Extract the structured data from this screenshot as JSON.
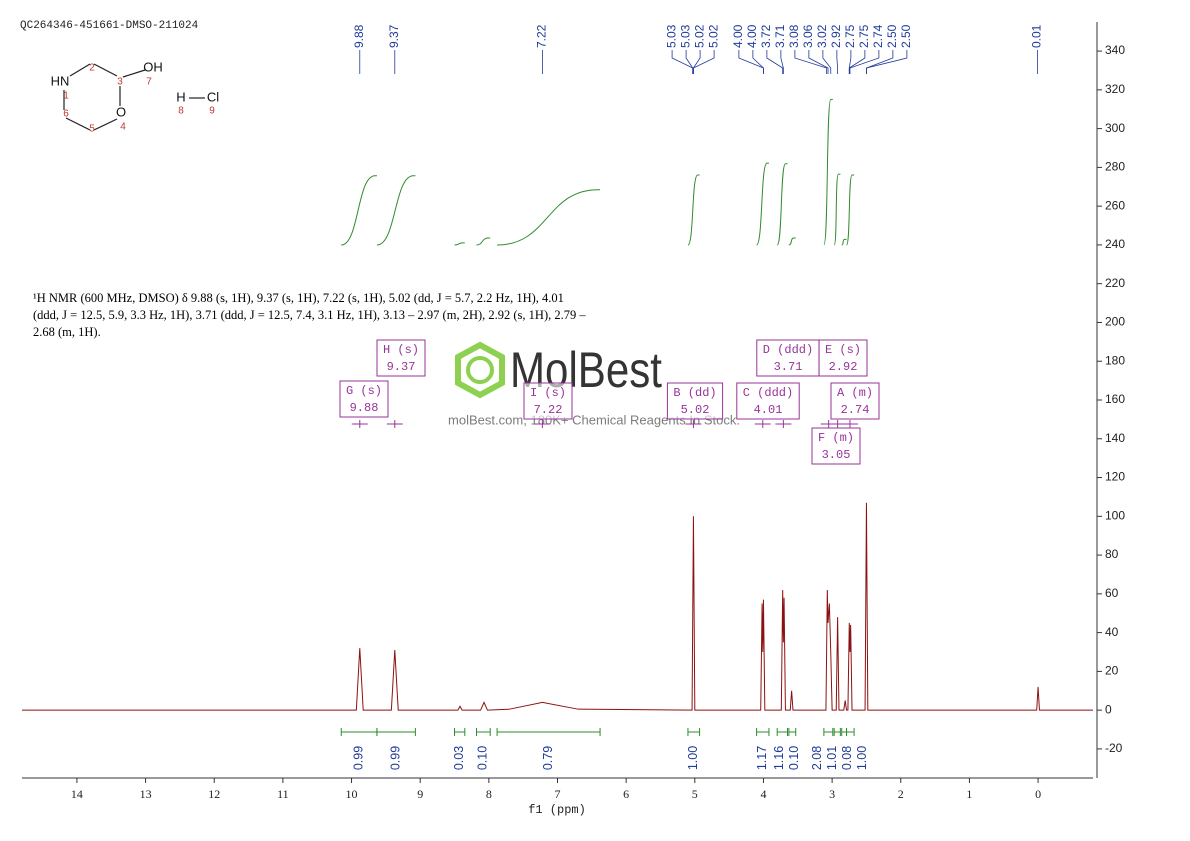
{
  "chart_data": {
    "type": "line",
    "title": "QC264346-451661-DMSO-211024",
    "description": "¹H NMR (600 MHz, DMSO) δ 9.88 (s, 1H), 9.37 (s, 1H), 7.22 (s, 1H), 5.02 (dd, J = 5.7, 2.2 Hz, 1H), 4.01 (ddd, J = 12.5, 5.9, 3.3 Hz, 1H), 3.71 (ddd, J = 12.5, 7.4, 3.1 Hz, 1H), 3.13 – 2.97 (m, 2H), 2.92 (s, 1H), 2.79 – 2.68 (m, 1H).",
    "x_label": "f1 (ppm)",
    "color": "#8b1212",
    "x": [
      14.8,
      9.93,
      9.88,
      9.83,
      9.42,
      9.37,
      9.32,
      8.45,
      8.42,
      8.39,
      8.12,
      8.07,
      8.02,
      7.7,
      7.22,
      6.7,
      5.04,
      5.02,
      5.0,
      4.04,
      4.02,
      4.01,
      4.0,
      3.98,
      3.74,
      3.72,
      3.71,
      3.7,
      3.68,
      3.61,
      3.59,
      3.57,
      3.09,
      3.07,
      3.06,
      3.04,
      3.02,
      3.0,
      2.94,
      2.92,
      2.9,
      2.83,
      2.81,
      2.79,
      2.77,
      2.75,
      2.74,
      2.73,
      2.71,
      2.52,
      2.5,
      2.48,
      0.02,
      0.0,
      -0.02,
      -0.8
    ],
    "values": [
      0,
      0,
      32,
      0,
      0,
      31,
      0,
      0,
      2,
      0,
      0,
      4,
      0,
      0.5,
      4,
      0.5,
      0,
      100,
      0,
      0,
      55,
      30,
      57,
      0,
      0,
      62,
      35,
      58,
      0,
      0,
      10,
      0,
      0,
      62,
      45,
      55,
      30,
      0,
      0,
      48,
      0,
      0,
      5,
      0,
      0,
      45,
      30,
      44,
      0,
      0,
      107,
      0,
      0,
      12,
      0,
      0
    ],
    "xlim": [
      14.8,
      -0.8
    ],
    "xticks": [
      14,
      13,
      12,
      11,
      10,
      9,
      8,
      7,
      6,
      5,
      4,
      3,
      2,
      1,
      0
    ],
    "ylim": [
      -35,
      355
    ],
    "yticks": [
      -20,
      0,
      20,
      40,
      60,
      80,
      100,
      120,
      140,
      160,
      180,
      200,
      220,
      240,
      260,
      280,
      300,
      320,
      340
    ],
    "peak_label_color": "#1f3a9a",
    "peak_labels": [
      9.88,
      9.37,
      7.22,
      5.03,
      5.03,
      5.02,
      5.02,
      {
        "value": 4.0,
        "label": "4.00"
      },
      {
        "value": 4.0,
        "label": "4.00"
      },
      3.72,
      3.71,
      3.08,
      3.06,
      3.02,
      2.92,
      2.75,
      2.75,
      2.74,
      {
        "value": 2.5,
        "label": "2.50"
      },
      {
        "value": 2.5,
        "label": "2.50"
      },
      0.01
    ],
    "integral_color": "#2e8b2e",
    "integrals": [
      {
        "range": [
          10.15,
          9.63
        ],
        "value": 0.99
      },
      {
        "range": [
          9.63,
          9.07
        ],
        "value": 0.99
      },
      {
        "range": [
          8.5,
          8.35
        ],
        "value": 0.03
      },
      {
        "range": [
          8.18,
          7.98
        ],
        "value": {
          "value": 0.1,
          "label": "0.10"
        }
      },
      {
        "range": [
          7.88,
          6.38
        ],
        "value": 0.79
      },
      {
        "range": [
          5.1,
          4.93
        ],
        "value": {
          "value": 1.0,
          "label": "1.00"
        }
      },
      {
        "range": [
          4.1,
          3.92
        ],
        "value": 1.17
      },
      {
        "range": [
          3.8,
          3.65
        ],
        "value": 1.16
      },
      {
        "range": [
          3.63,
          3.53
        ],
        "value": {
          "value": 0.1,
          "label": "0.10"
        }
      },
      {
        "range": [
          3.12,
          2.99
        ],
        "value": 2.08
      },
      {
        "range": [
          2.97,
          2.88
        ],
        "value": 1.01
      },
      {
        "range": [
          2.86,
          2.79
        ],
        "value": 0.08
      },
      {
        "range": [
          2.79,
          2.68
        ],
        "value": {
          "value": 1.0,
          "label": "1.00"
        }
      }
    ],
    "multiplet_color": "#993399",
    "multiplets": [
      {
        "label": "G (s)",
        "shift": 9.88
      },
      {
        "label": "H (s)",
        "shift": 9.37
      },
      {
        "label": "I (s)",
        "shift": 7.22
      },
      {
        "label": "B (dd)",
        "shift": 5.02
      },
      {
        "label": "C (ddd)",
        "shift": 4.01
      },
      {
        "label": "D (ddd)",
        "shift": 3.71
      },
      {
        "label": "E (s)",
        "shift": 2.92
      },
      {
        "label": "A (m)",
        "shift": 2.74
      },
      {
        "label": "F (m)",
        "shift": 3.05
      }
    ],
    "watermark": {
      "brand": "MolBest",
      "tagline": "molBest.com, 180K+ Chemical Reagents In Stock."
    },
    "structure": {
      "labels": [
        "HN",
        "OH",
        "O",
        "H",
        "Cl"
      ],
      "numbers": [
        1,
        2,
        3,
        4,
        5,
        6,
        7,
        8,
        9
      ]
    }
  }
}
